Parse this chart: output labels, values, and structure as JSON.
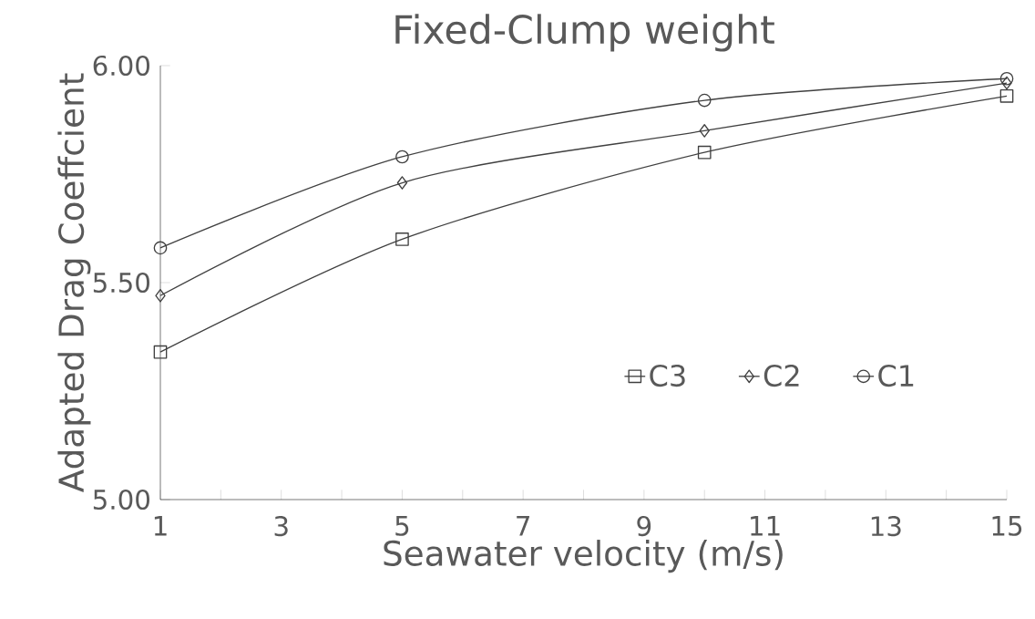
{
  "chart_data": {
    "type": "line",
    "title": "Fixed-Clump weight",
    "xlabel": "Seawater velocity (m/s)",
    "ylabel": "Adapted Drag Coeffcient",
    "x": [
      1,
      5,
      10,
      15
    ],
    "series": [
      {
        "name": "C3",
        "color": "#404040",
        "marker": "square",
        "values": [
          5.34,
          5.6,
          5.8,
          5.93
        ]
      },
      {
        "name": "C2",
        "color": "#404040",
        "marker": "diamond",
        "values": [
          5.47,
          5.73,
          5.85,
          5.96
        ]
      },
      {
        "name": "C1",
        "color": "#404040",
        "marker": "circle",
        "values": [
          5.58,
          5.79,
          5.92,
          5.97
        ]
      }
    ],
    "xlim": [
      1,
      15
    ],
    "ylim": [
      5,
      6
    ],
    "xticks": [
      1,
      {
        "value": 2,
        "label": null
      },
      3,
      {
        "value": 4,
        "label": null
      },
      5,
      {
        "value": 6,
        "label": null
      },
      7,
      {
        "value": 8,
        "label": null
      },
      9,
      {
        "value": 10,
        "label": null
      },
      11,
      {
        "value": 12,
        "label": null
      },
      13,
      {
        "value": 14,
        "label": null
      },
      15
    ],
    "yticks": [
      {
        "value": 5,
        "label": "5.00"
      },
      {
        "value": 5.5,
        "label": "5.50"
      },
      {
        "value": 6,
        "label": "6.00"
      }
    ],
    "grid": false,
    "legend": "right",
    "line_style": "solid"
  }
}
